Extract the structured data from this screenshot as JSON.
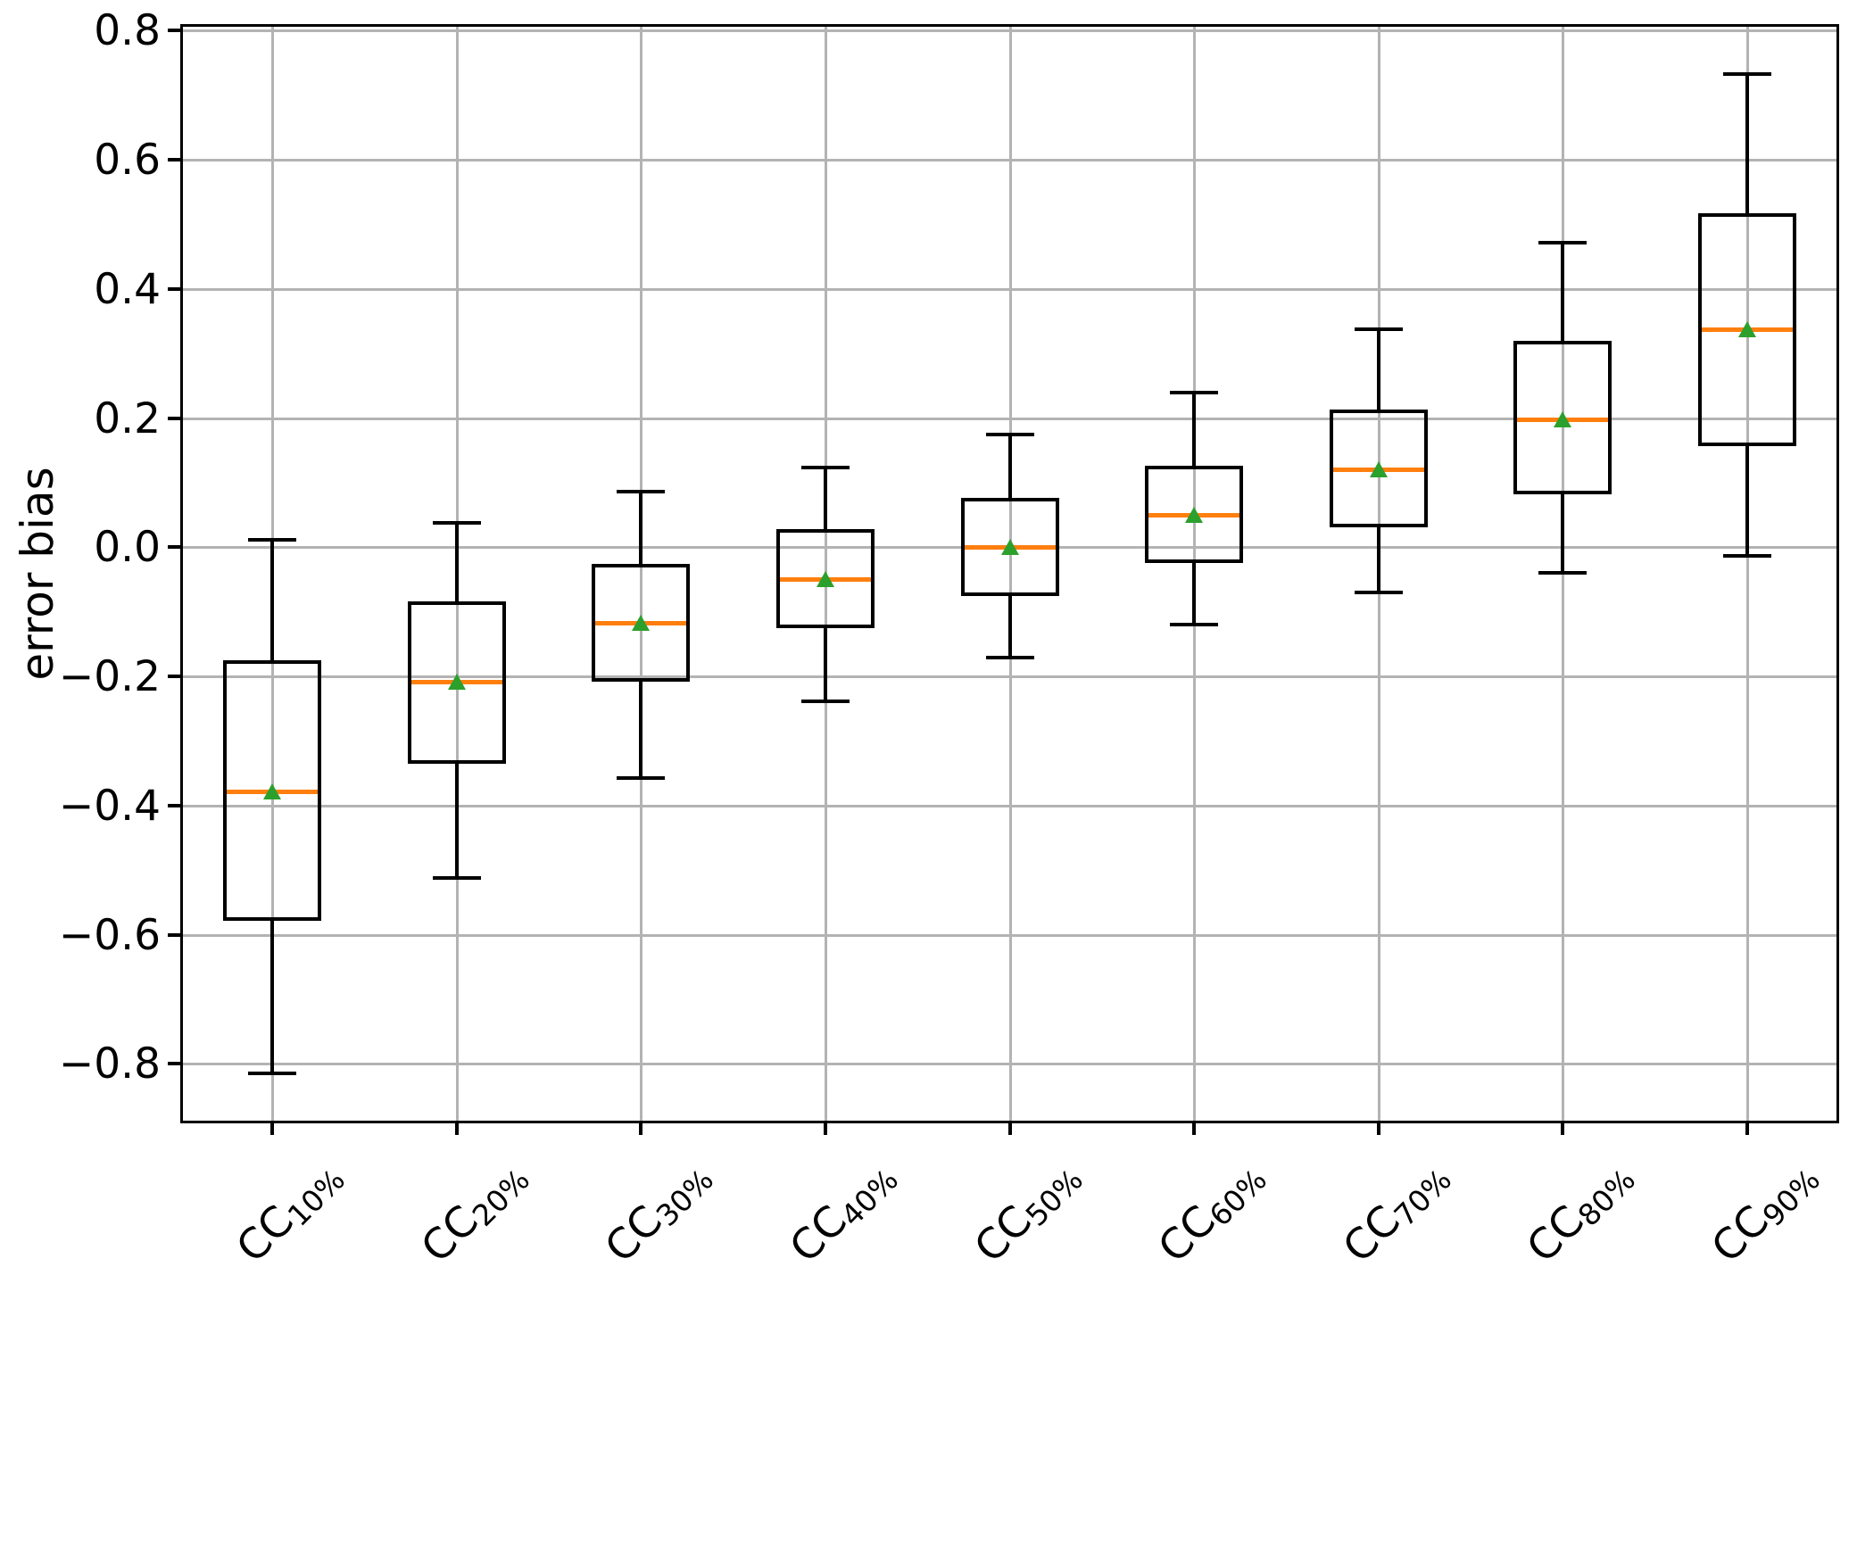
{
  "chart_data": {
    "type": "box",
    "title": "",
    "xlabel": "",
    "ylabel": "error bias",
    "ylim": [
      -0.892,
      0.81
    ],
    "grid": true,
    "legend_position": "none",
    "yticks": [
      {
        "value": 0.8,
        "label": "0.8"
      },
      {
        "value": 0.6,
        "label": "0.6"
      },
      {
        "value": 0.4,
        "label": "0.4"
      },
      {
        "value": 0.2,
        "label": "0.2"
      },
      {
        "value": 0.0,
        "label": "0.0"
      },
      {
        "value": -0.2,
        "label": "−0.2"
      },
      {
        "value": -0.4,
        "label": "−0.4"
      },
      {
        "value": -0.6,
        "label": "−0.6"
      },
      {
        "value": -0.8,
        "label": "−0.8"
      }
    ],
    "categories": [
      "CC10%",
      "CC20%",
      "CC30%",
      "CC40%",
      "CC50%",
      "CC60%",
      "CC70%",
      "CC80%",
      "CC90%"
    ],
    "category_parts": [
      {
        "prefix": "CC",
        "sub": "10%"
      },
      {
        "prefix": "CC",
        "sub": "20%"
      },
      {
        "prefix": "CC",
        "sub": "30%"
      },
      {
        "prefix": "CC",
        "sub": "40%"
      },
      {
        "prefix": "CC",
        "sub": "50%"
      },
      {
        "prefix": "CC",
        "sub": "60%"
      },
      {
        "prefix": "CC",
        "sub": "70%"
      },
      {
        "prefix": "CC",
        "sub": "80%"
      },
      {
        "prefix": "CC",
        "sub": "90%"
      }
    ],
    "boxes": [
      {
        "label": "CC10%",
        "whislo": -0.815,
        "q1": -0.575,
        "med": -0.378,
        "q3": -0.178,
        "whishi": 0.011,
        "mean": -0.378
      },
      {
        "label": "CC20%",
        "whislo": -0.512,
        "q1": -0.332,
        "med": -0.208,
        "q3": -0.086,
        "whishi": 0.038,
        "mean": -0.208
      },
      {
        "label": "CC30%",
        "whislo": -0.357,
        "q1": -0.206,
        "med": -0.117,
        "q3": -0.028,
        "whishi": 0.086,
        "mean": -0.117
      },
      {
        "label": "CC40%",
        "whislo": -0.238,
        "q1": -0.123,
        "med": -0.049,
        "q3": 0.026,
        "whishi": 0.123,
        "mean": -0.049
      },
      {
        "label": "CC50%",
        "whislo": -0.171,
        "q1": -0.073,
        "med": 0.0,
        "q3": 0.073,
        "whishi": 0.175,
        "mean": 0.0
      },
      {
        "label": "CC60%",
        "whislo": -0.12,
        "q1": -0.022,
        "med": 0.05,
        "q3": 0.123,
        "whishi": 0.24,
        "mean": 0.05
      },
      {
        "label": "CC70%",
        "whislo": -0.07,
        "q1": 0.033,
        "med": 0.12,
        "q3": 0.21,
        "whishi": 0.338,
        "mean": 0.12
      },
      {
        "label": "CC80%",
        "whislo": -0.039,
        "q1": 0.085,
        "med": 0.198,
        "q3": 0.317,
        "whishi": 0.472,
        "mean": 0.198
      },
      {
        "label": "CC90%",
        "whislo": -0.013,
        "q1": 0.16,
        "med": 0.337,
        "q3": 0.514,
        "whishi": 0.732,
        "mean": 0.337
      }
    ],
    "mean_marker_shape": "triangle-up",
    "colors": {
      "median": "#ff7f0e",
      "mean_marker": "#2ca02c",
      "box_edge": "#000000",
      "whisker": "#000000",
      "grid": "#b3b3b3",
      "spine": "#000000",
      "background": "#ffffff"
    }
  }
}
